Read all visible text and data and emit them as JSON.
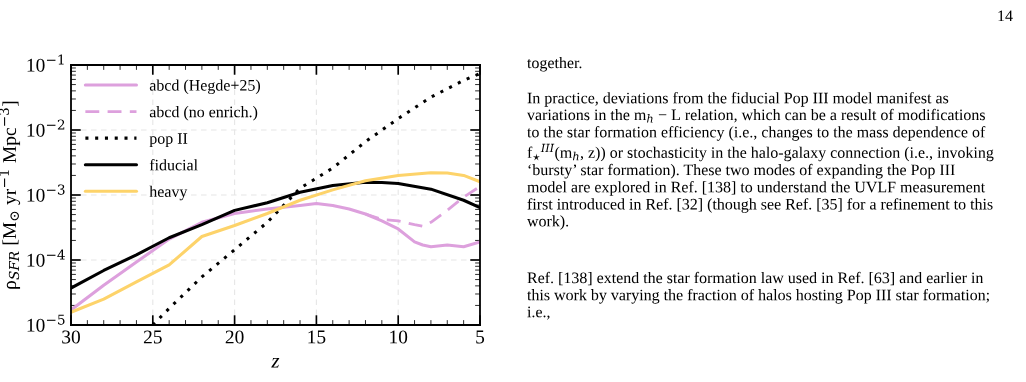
{
  "chart_data": {
    "type": "line",
    "xlabel": "z",
    "ylabel": "ρ$_{SFR}$ [M$_{⊙}$ yr$^{−1}$ Mpc$^{−3}$]",
    "x": [
      30,
      28,
      26,
      24,
      22,
      20,
      18,
      16,
      15,
      14,
      13,
      12,
      11,
      10,
      9,
      8.5,
      8,
      7,
      6,
      5
    ],
    "series": [
      {
        "name": "abcd (Hegde+25)",
        "color": "#dda0dd",
        "line_style": "solid",
        "values": [
          1.7e-05,
          4.1e-05,
          9.3e-05,
          0.00021,
          0.00038,
          0.00052,
          0.00061,
          0.00069,
          0.00074,
          0.00069,
          0.00061,
          0.00051,
          0.0004,
          0.0003,
          0.00019,
          0.00017,
          0.00016,
          0.00017,
          0.00016,
          0.00019
        ]
      },
      {
        "name": "abcd (no enrich.)",
        "color": "#dda0dd",
        "line_style": "dashed",
        "x": [
          12,
          11,
          10,
          9,
          8.5,
          8,
          7,
          6,
          5
        ],
        "values": [
          0.00051,
          0.00042,
          0.0004,
          0.00035,
          0.00033,
          0.00038,
          0.00058,
          0.00093,
          0.00135
        ]
      },
      {
        "name": "pop II",
        "color": "#000000",
        "line_style": "dotted",
        "x": [
          25,
          24,
          22,
          20,
          18,
          16,
          14,
          12,
          10,
          8,
          6,
          5
        ],
        "values": [
          1e-05,
          1.8e-05,
          5.5e-05,
          0.000144,
          0.00038,
          0.00127,
          0.0026,
          0.0066,
          0.015,
          0.032,
          0.058,
          0.074
        ]
      },
      {
        "name": "fiducial",
        "color": "#000000",
        "line_style": "solid",
        "x": [
          30,
          28,
          26,
          24,
          22,
          20,
          18,
          16,
          14,
          12,
          11,
          10,
          8,
          6,
          5
        ],
        "values": [
          3.7e-05,
          6.9e-05,
          0.00012,
          0.00022,
          0.00035,
          0.00058,
          0.00076,
          0.0011,
          0.0014,
          0.00157,
          0.00156,
          0.0015,
          0.00123,
          0.00083,
          0.00064
        ]
      },
      {
        "name": "heavy",
        "color": "#fdd36a",
        "line_style": "solid",
        "x": [
          30,
          28,
          26,
          24,
          22,
          20,
          18,
          16,
          14,
          12,
          10,
          8,
          7,
          6,
          5
        ],
        "values": [
          1.57e-05,
          2.5e-05,
          4.6e-05,
          8.4e-05,
          0.00023,
          0.00034,
          0.00052,
          0.00083,
          0.0012,
          0.00166,
          0.002,
          0.0022,
          0.00218,
          0.002,
          0.0016
        ]
      }
    ],
    "xlim": [
      30,
      5
    ],
    "xticks": [
      30,
      25,
      20,
      15,
      10,
      5
    ],
    "ylim": [
      1e-05,
      0.1
    ],
    "yticks": [
      {
        "value": 1e-05,
        "label": "10$^{−5}$"
      },
      {
        "value": 0.0001,
        "label": "10$^{−4}$"
      },
      {
        "value": 0.001,
        "label": "10$^{−3}$"
      },
      {
        "value": 0.01,
        "label": "10$^{−2}$"
      },
      {
        "value": 0.1,
        "label": "10$^{−1}$"
      }
    ],
    "log": "y",
    "grid": true,
    "legend": "top left",
    "annotations": [
      "14",
      "together.",
      "In practice, deviations from the fiducial Pop III model manifest as variations in the m$_{h}$ − L relation, which can be a result of modifications to the star formation efficiency (i.e., changes to the mass dependence of f$_{⋆}$$^{III}$(m$_{h}$, z)) or stochasticity in the halo-galaxy connection (i.e., invoking ‘bursty’ star formation). These two modes of expanding the Pop III model are explored in Ref. [138] to understand the UVLF measurement first introduced in Ref. [32] (though see Ref. [35] for a refinement to this work).",
      "Ref. [138] extend the star formation law used in Ref. [63] and earlier in this work by varying the fraction of halos hosting Pop III star formation; i.e.,"
    ]
  }
}
